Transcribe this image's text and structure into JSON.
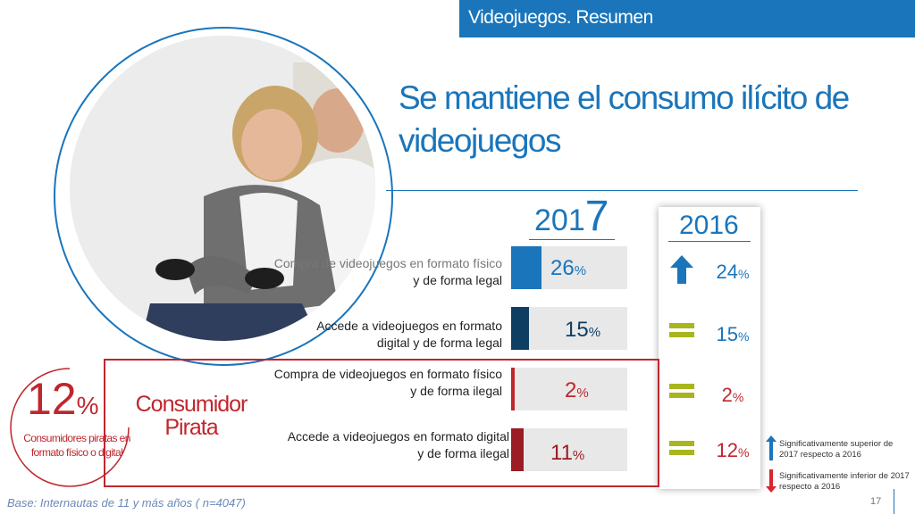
{
  "header": {
    "section": "Videojuegos. Resumen"
  },
  "title": {
    "line1": "Se mantiene el consumo ilícito de",
    "line2": "videojuegos"
  },
  "year_current": {
    "prefix": "201",
    "suffix": "7"
  },
  "year_previous": "2016",
  "rows": [
    {
      "line1": "Compra de videojuegos en formato físico",
      "line2": "y de forma legal",
      "value": "26",
      "unit": "%",
      "value_2016": "24",
      "unit_2016": "%",
      "change": "up",
      "fill_fraction": 0.26
    },
    {
      "line1": "Accede a  videojuegos en formato",
      "line2": "digital y de forma legal",
      "value": "15",
      "unit": "%",
      "value_2016": "15",
      "unit_2016": "%",
      "change": "equal",
      "fill_fraction": 0.15
    },
    {
      "line1": "Compra de videojuegos en formato físico",
      "line2": "y de forma ilegal",
      "value": "2",
      "unit": "%",
      "value_2016": "2",
      "unit_2016": "%",
      "change": "equal",
      "fill_fraction": 0.02
    },
    {
      "line1": "Accede a  videojuegos en formato digital",
      "line2": "y de forma ilegal",
      "value": "11",
      "unit": "%",
      "value_2016": "12",
      "unit_2016": "%",
      "change": "equal",
      "fill_fraction": 0.11
    }
  ],
  "pirate": {
    "percent": "12",
    "percent_unit": "%",
    "description": "Consumidores piratas en formato físico o digital",
    "title_line1": "Consumidor",
    "title_line2": "Pirata"
  },
  "legend": {
    "up": "Significativamente superior de 2017 respecto a 2016",
    "down": "Significativamente inferior de 2017 respecto a 2016"
  },
  "colors": {
    "brand_blue": "#1a75bb",
    "dark_blue": "#0f3e63",
    "pirate_red": "#c0262d",
    "equal_green": "#a8b51e"
  },
  "footnote": "Base: Internautas de 11 y más años ( n=4047)",
  "page_number": "17"
}
